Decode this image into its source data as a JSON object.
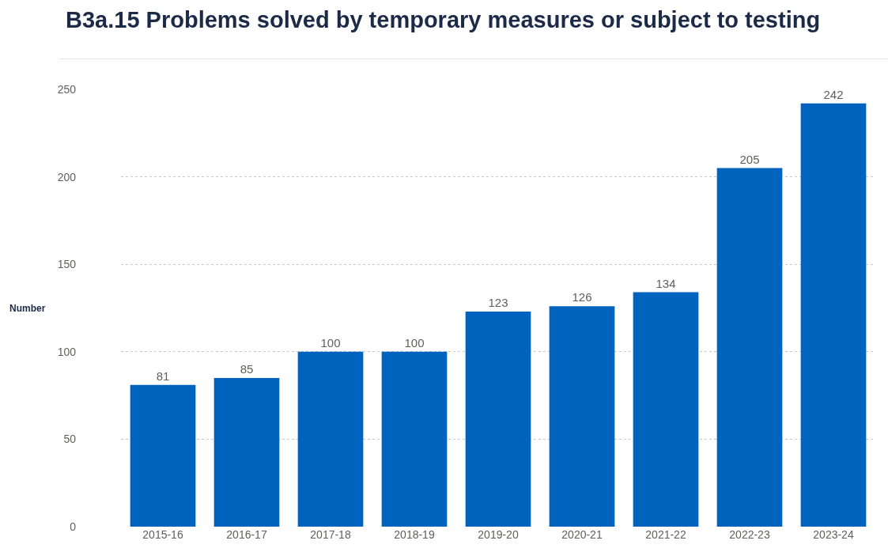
{
  "chart_data": {
    "type": "bar",
    "title": "B3a.15 Problems solved by temporary measures or subject to testing",
    "ylabel": "Number",
    "categories": [
      "2015-16",
      "2016-17",
      "2017-18",
      "2018-19",
      "2019-20",
      "2020-21",
      "2021-22",
      "2022-23",
      "2023-24"
    ],
    "values": [
      81,
      85,
      100,
      100,
      123,
      126,
      134,
      205,
      242
    ],
    "color": "#0063be",
    "ylim": [
      0,
      250
    ],
    "yticks": [
      0,
      50,
      100,
      150,
      200,
      250
    ],
    "grid": "y",
    "data_labels": true
  }
}
